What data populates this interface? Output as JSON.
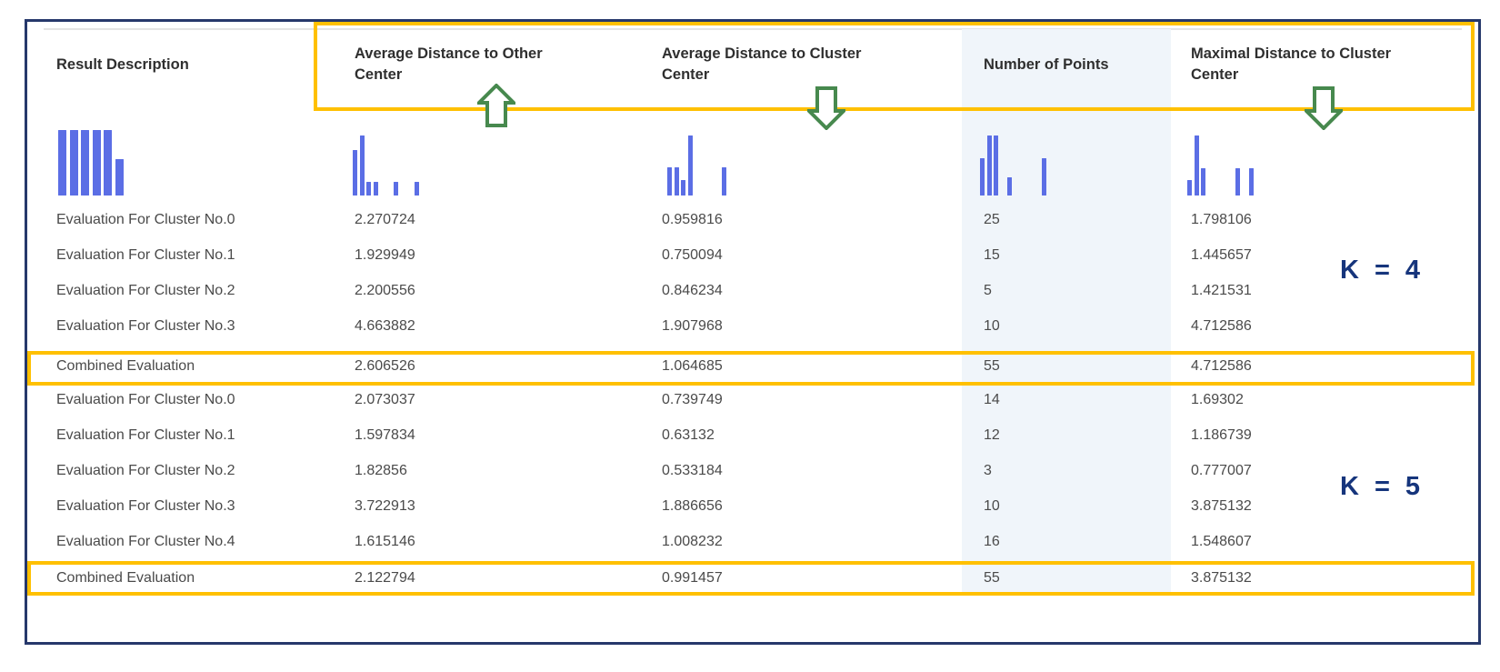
{
  "panel": {
    "background": "#FFFFFF",
    "border_color": "#26386B"
  },
  "table": {
    "columns": [
      "Result Description",
      "Average Distance to Other Center",
      "Average Distance to Cluster Center",
      "Number of Points",
      "Maximal Distance to Cluster Center"
    ],
    "rows": [
      {
        "description": "Evaluation For Cluster No.0",
        "avg_distance_other_center": "2.270724",
        "avg_distance_cluster_center": "0.959816",
        "number_of_points": "25",
        "max_distance_cluster_center": "1.798106",
        "combined": false
      },
      {
        "description": "Evaluation For Cluster No.1",
        "avg_distance_other_center": "1.929949",
        "avg_distance_cluster_center": "0.750094",
        "number_of_points": "15",
        "max_distance_cluster_center": "1.445657",
        "combined": false
      },
      {
        "description": "Evaluation For Cluster No.2",
        "avg_distance_other_center": "2.200556",
        "avg_distance_cluster_center": "0.846234",
        "number_of_points": "5",
        "max_distance_cluster_center": "1.421531",
        "combined": false
      },
      {
        "description": "Evaluation For Cluster No.3",
        "avg_distance_other_center": "4.663882",
        "avg_distance_cluster_center": "1.907968",
        "number_of_points": "10",
        "max_distance_cluster_center": "4.712586",
        "combined": false
      },
      {
        "description": "Combined Evaluation",
        "avg_distance_other_center": "2.606526",
        "avg_distance_cluster_center": "1.064685",
        "number_of_points": "55",
        "max_distance_cluster_center": "4.712586",
        "combined": true
      },
      {
        "description": "Evaluation For Cluster No.0",
        "avg_distance_other_center": "2.073037",
        "avg_distance_cluster_center": "0.739749",
        "number_of_points": "14",
        "max_distance_cluster_center": "1.69302",
        "combined": false
      },
      {
        "description": "Evaluation For Cluster No.1",
        "avg_distance_other_center": "1.597834",
        "avg_distance_cluster_center": "0.63132",
        "number_of_points": "12",
        "max_distance_cluster_center": "1.186739",
        "combined": false
      },
      {
        "description": "Evaluation For Cluster No.2",
        "avg_distance_other_center": "1.82856",
        "avg_distance_cluster_center": "0.533184",
        "number_of_points": "3",
        "max_distance_cluster_center": "0.777007",
        "combined": false
      },
      {
        "description": "Evaluation For Cluster No.3",
        "avg_distance_other_center": "3.722913",
        "avg_distance_cluster_center": "1.886656",
        "number_of_points": "10",
        "max_distance_cluster_center": "3.875132",
        "combined": false
      },
      {
        "description": "Evaluation For Cluster No.4",
        "avg_distance_other_center": "1.615146",
        "avg_distance_cluster_center": "1.008232",
        "number_of_points": "16",
        "max_distance_cluster_center": "1.548607",
        "combined": false
      },
      {
        "description": "Combined Evaluation",
        "avg_distance_other_center": "2.122794",
        "avg_distance_cluster_center": "0.991457",
        "number_of_points": "55",
        "max_distance_cluster_center": "3.875132",
        "combined": true
      }
    ]
  },
  "histograms": [
    {
      "column": "Result Description",
      "bar_heights": [
        1,
        1,
        1,
        1,
        1,
        0.55
      ]
    },
    {
      "column": "Average Distance to Other Center",
      "bar_heights": [
        0.75,
        1,
        0.22,
        0.22,
        0,
        0,
        0.22,
        0,
        0,
        0.22
      ]
    },
    {
      "column": "Average Distance to Cluster Center",
      "bar_heights": [
        0.47,
        0.47,
        0.25,
        1,
        0,
        0,
        0,
        0,
        0.47
      ]
    },
    {
      "column": "Number of Points",
      "bar_heights": [
        0.62,
        1,
        1,
        0,
        0.3,
        0,
        0,
        0,
        0,
        0.62
      ]
    },
    {
      "column": "Maximal Distance to Cluster Center",
      "bar_heights": [
        0.25,
        1,
        0.45,
        0,
        0,
        0,
        0,
        0.45,
        0,
        0.45
      ]
    }
  ],
  "annotations": {
    "k_labels": [
      {
        "text": "K = 4"
      },
      {
        "text": "K = 5"
      }
    ],
    "highlight_box_color": "#FFC000",
    "arrow_color": "#47894E",
    "k_label_color": "#16357C",
    "arrows": [
      {
        "direction": "up",
        "target_column": "Average Distance to Other Center"
      },
      {
        "direction": "down",
        "target_column": "Average Distance to Cluster Center"
      },
      {
        "direction": "down",
        "target_column": "Maximal Distance to Cluster Center"
      }
    ]
  },
  "colors": {
    "histogram_bar": "#5B6EE5",
    "points_column_band": "#F0F5FA",
    "header_text": "#2F2F2F",
    "cell_text": "#4A4A4A"
  }
}
